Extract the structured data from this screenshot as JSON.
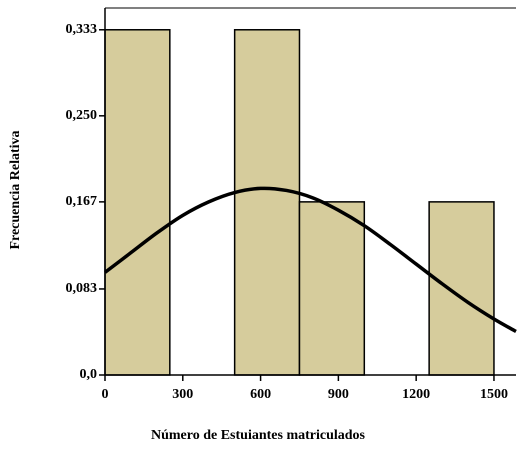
{
  "chart_data": {
    "type": "histogram",
    "xlabel": "Número de Estuiantes matriculados",
    "ylabel": "Frecuencia Relativa",
    "bins": [
      0,
      250,
      500,
      750,
      1000,
      1250,
      1500
    ],
    "values": [
      0.333,
      0,
      0.333,
      0.167,
      0,
      0.167
    ],
    "color": "#d6cc9c",
    "edgecolor": "#000000",
    "xlim": [
      0,
      1585
    ],
    "xticks": [
      0,
      300,
      600,
      900,
      1200,
      1500
    ],
    "ylim": [
      0,
      0.354
    ],
    "yticks": [
      {
        "value": 0,
        "label": "0,0"
      },
      {
        "value": 0.083,
        "label": "0,083"
      },
      {
        "value": 0.167,
        "label": "0,167"
      },
      {
        "value": 0.25,
        "label": "0,250"
      },
      {
        "value": 0.333,
        "label": "0,333"
      }
    ],
    "curve": {
      "color": "#000000",
      "x": [
        0,
        100,
        200,
        300,
        400,
        500,
        600,
        700,
        800,
        900,
        1000,
        1100,
        1200,
        1300,
        1400,
        1500,
        1585
      ],
      "values": [
        0.099,
        0.118,
        0.137,
        0.154,
        0.167,
        0.176,
        0.18,
        0.178,
        0.171,
        0.159,
        0.144,
        0.126,
        0.107,
        0.088,
        0.07,
        0.054,
        0.042
      ]
    }
  }
}
